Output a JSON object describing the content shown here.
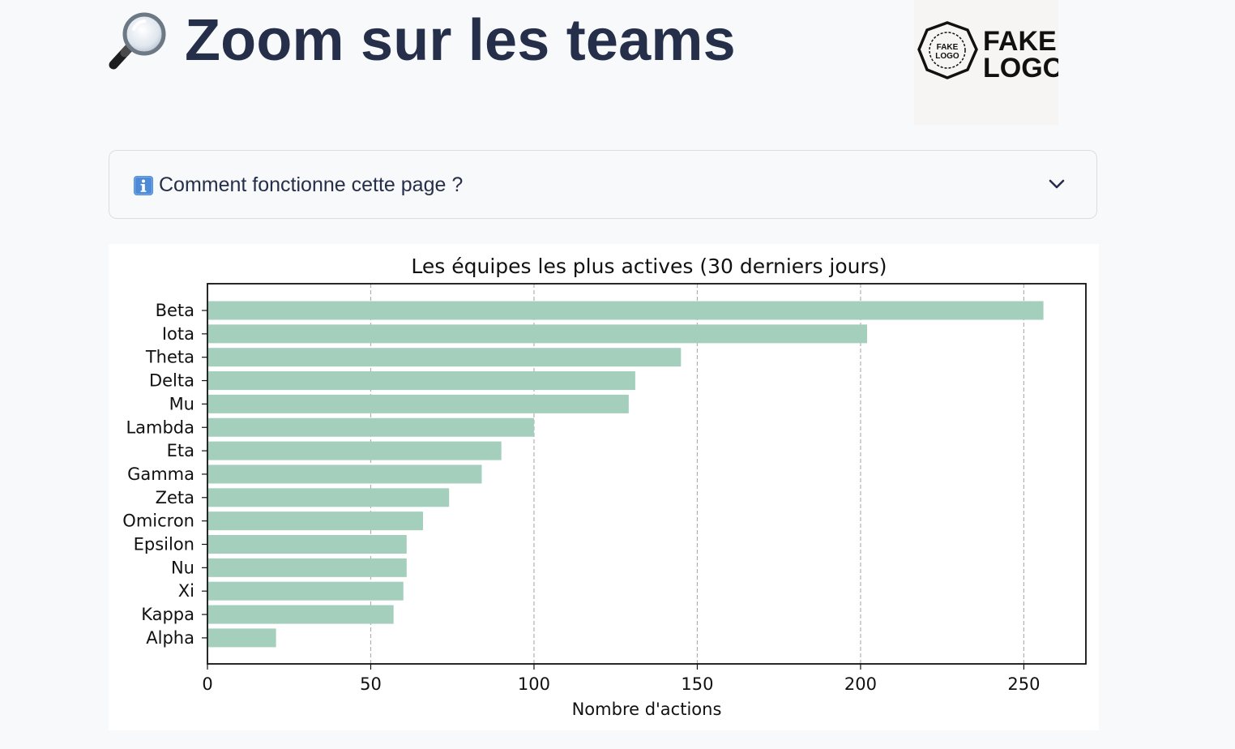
{
  "header": {
    "title": "Zoom sur les teams",
    "title_icon": "magnifying-glass-icon",
    "logo": {
      "line1": "FAKE",
      "line2": "LOGO",
      "badge_line1": "FAKE",
      "badge_line2": "LOGO"
    }
  },
  "expander": {
    "icon": "info-icon",
    "label": "Comment fonctionne cette page ?",
    "toggle_icon": "chevron-down-icon",
    "expanded": false
  },
  "chart_data": {
    "type": "bar",
    "orientation": "horizontal",
    "title": "Les équipes les plus actives (30 derniers jours)",
    "xlabel": "Nombre d'actions",
    "ylabel": "",
    "categories": [
      "Beta",
      "Iota",
      "Theta",
      "Delta",
      "Mu",
      "Lambda",
      "Eta",
      "Gamma",
      "Zeta",
      "Omicron",
      "Epsilon",
      "Nu",
      "Xi",
      "Kappa",
      "Alpha"
    ],
    "values": [
      256,
      202,
      145,
      131,
      129,
      100,
      90,
      84,
      74,
      66,
      61,
      61,
      60,
      57,
      21
    ],
    "xlim": [
      0,
      269
    ],
    "xticks": [
      0,
      50,
      100,
      150,
      200,
      250
    ],
    "grid": {
      "x": true,
      "y": false,
      "style": "dashed"
    },
    "bar_color": "#a5cfbd",
    "legend": "none"
  }
}
